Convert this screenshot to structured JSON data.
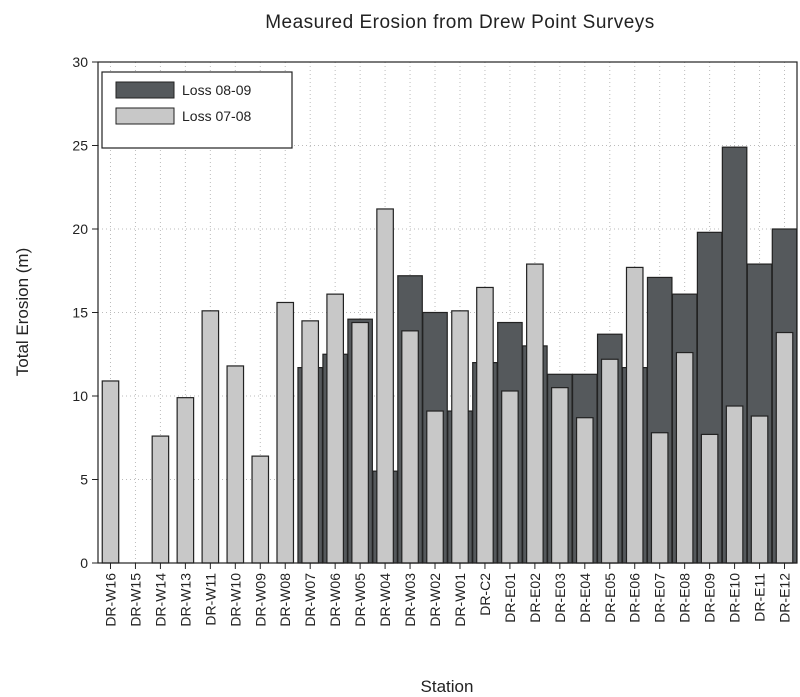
{
  "chart_data": {
    "type": "bar",
    "title": "Measured Erosion from Drew Point Surveys",
    "x_label": "Station",
    "y_label": "Total Erosion (m)",
    "categories": [
      "DR-W16",
      "DR-W15",
      "DR-W14",
      "DR-W13",
      "DR-W11",
      "DR-W10",
      "DR-W09",
      "DR-W08",
      "DR-W07",
      "DR-W06",
      "DR-W05",
      "DR-W04",
      "DR-W03",
      "DR-W02",
      "DR-W01",
      "DR-C2",
      "DR-E01",
      "DR-E02",
      "DR-E03",
      "DR-E04",
      "DR-E05",
      "DR-E06",
      "DR-E07",
      "DR-E08",
      "DR-E09",
      "DR-E10",
      "DR-E11",
      "DR-E12"
    ],
    "series": [
      {
        "name": "Loss 08-09",
        "color": "#55595c",
        "values": [
          null,
          null,
          null,
          null,
          null,
          null,
          null,
          null,
          11.7,
          12.5,
          14.6,
          5.5,
          17.2,
          15.0,
          9.1,
          12.0,
          14.4,
          13.0,
          11.3,
          11.3,
          13.7,
          11.7,
          17.1,
          16.1,
          19.8,
          24.9,
          17.9,
          20.0
        ]
      },
      {
        "name": "Loss 07-08",
        "color": "#c8c8c8",
        "values": [
          10.9,
          0,
          7.6,
          9.9,
          15.1,
          11.8,
          6.4,
          15.6,
          14.5,
          16.1,
          14.4,
          21.2,
          13.9,
          9.1,
          15.1,
          16.5,
          10.3,
          17.9,
          10.5,
          8.7,
          12.2,
          17.7,
          7.8,
          12.6,
          7.7,
          9.4,
          8.8,
          13.8
        ]
      }
    ],
    "ylim": [
      0,
      30
    ],
    "yticks": [
      0,
      5,
      10,
      15,
      20,
      25,
      30
    ],
    "grid": true,
    "legend": "upper left"
  }
}
